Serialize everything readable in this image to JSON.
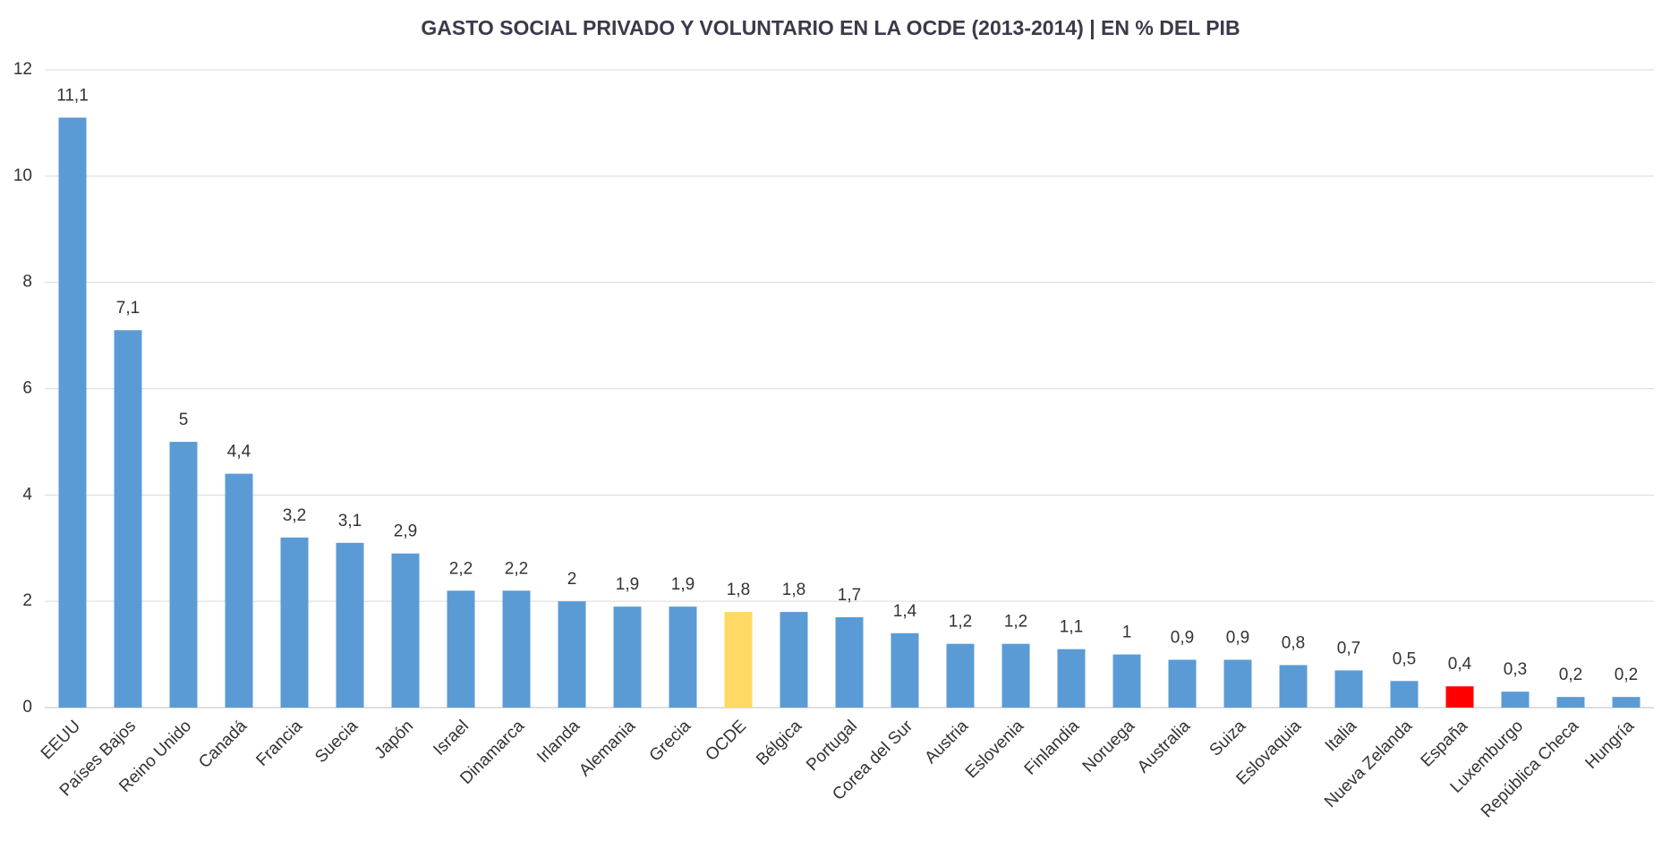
{
  "chart_data": {
    "type": "bar",
    "title": "GASTO SOCIAL PRIVADO Y VOLUNTARIO EN LA OCDE (2013-2014) | EN % DEL PIB",
    "categories": [
      "EEUU",
      "Países Bajos",
      "Reino Unido",
      "Canadá",
      "Francia",
      "Suecia",
      "Japón",
      "Israel",
      "Dinamarca",
      "Irlanda",
      "Alemania",
      "Grecia",
      "OCDE",
      "Bélgica",
      "Portugal",
      "Corea del Sur",
      "Austria",
      "Eslovenia",
      "Finlandia",
      "Noruega",
      "Australia",
      "Suiza",
      "Eslovaquia",
      "Italia",
      "Nueva Zelanda",
      "España",
      "Luxemburgo",
      "República Checa",
      "Hungría"
    ],
    "values": [
      11.1,
      7.1,
      5,
      4.4,
      3.2,
      3.1,
      2.9,
      2.2,
      2.2,
      2,
      1.9,
      1.9,
      1.8,
      1.8,
      1.7,
      1.4,
      1.2,
      1.2,
      1.1,
      1,
      0.9,
      0.9,
      0.8,
      0.7,
      0.5,
      0.4,
      0.3,
      0.2,
      0.2
    ],
    "value_labels": [
      "11,1",
      "7,1",
      "5",
      "4,4",
      "3,2",
      "3,1",
      "2,9",
      "2,2",
      "2,2",
      "2",
      "1,9",
      "1,9",
      "1,8",
      "1,8",
      "1,7",
      "1,4",
      "1,2",
      "1,2",
      "1,1",
      "1",
      "0,9",
      "0,9",
      "0,8",
      "0,7",
      "0,5",
      "0,4",
      "0,3",
      "0,2",
      "0,2"
    ],
    "colors": [
      "#5b9bd5",
      "#5b9bd5",
      "#5b9bd5",
      "#5b9bd5",
      "#5b9bd5",
      "#5b9bd5",
      "#5b9bd5",
      "#5b9bd5",
      "#5b9bd5",
      "#5b9bd5",
      "#5b9bd5",
      "#5b9bd5",
      "#ffd966",
      "#5b9bd5",
      "#5b9bd5",
      "#5b9bd5",
      "#5b9bd5",
      "#5b9bd5",
      "#5b9bd5",
      "#5b9bd5",
      "#5b9bd5",
      "#5b9bd5",
      "#5b9bd5",
      "#5b9bd5",
      "#5b9bd5",
      "#ff0000",
      "#5b9bd5",
      "#5b9bd5",
      "#5b9bd5"
    ],
    "ylim": [
      0,
      12
    ],
    "yticks": [
      0,
      2,
      4,
      6,
      8,
      10,
      12
    ],
    "grid": true
  }
}
